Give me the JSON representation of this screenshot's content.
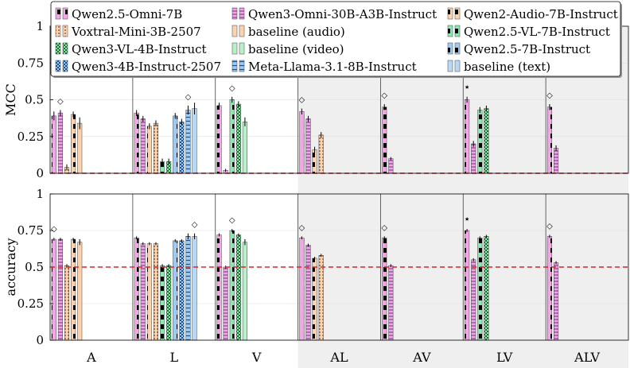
{
  "chart_data": {
    "type": "bar",
    "categories": [
      "A",
      "L",
      "V",
      "AL",
      "AV",
      "LV",
      "ALV"
    ],
    "shaded_categories": [
      "AL",
      "AV",
      "LV",
      "ALV"
    ],
    "legend": [
      {
        "label": "Qwen2.5-Omni-7B",
        "fill": "#f2a6e6",
        "pattern": "hstripe-black"
      },
      {
        "label": "Qwen3-Omni-30B-A3B-Instruct",
        "fill": "#f2a6e6",
        "pattern": "hgrid-purple"
      },
      {
        "label": "Qwen2-Audio-7B-Instruct",
        "fill": "#fbd3b0",
        "pattern": "hstripe-black"
      },
      {
        "label": "Voxtral-Mini-3B-2507",
        "fill": "#fbd3b0",
        "pattern": "dots-brown"
      },
      {
        "label": "baseline (audio)",
        "fill": "#fbd3b0",
        "pattern": "none"
      },
      {
        "label": "Qwen2.5-VL-7B-Instruct",
        "fill": "#8fe6b0",
        "pattern": "hstripe-black"
      },
      {
        "label": "Qwen3-VL-4B-Instruct",
        "fill": "#8fe6b0",
        "pattern": "checker-green"
      },
      {
        "label": "baseline (video)",
        "fill": "#b9efc9",
        "pattern": "none"
      },
      {
        "label": "Qwen2.5-7B-Instruct",
        "fill": "#9fcaf2",
        "pattern": "hstripe-black"
      },
      {
        "label": "Qwen3-4B-Instruct-2507",
        "fill": "#9fcaf2",
        "pattern": "checker-blue"
      },
      {
        "label": "Meta-Llama-3.1-8B-Instruct",
        "fill": "#9fcaf2",
        "pattern": "hlines-blue"
      },
      {
        "label": "baseline (text)",
        "fill": "#b8d8f5",
        "pattern": "none"
      }
    ],
    "panels": [
      {
        "ylabel": "MCC",
        "ylim": [
          0,
          1
        ],
        "yticks": [
          "0",
          "0.25",
          "0.5",
          "0.75",
          "1"
        ],
        "baseline": 0,
        "groups": [
          {
            "category": "A",
            "bars": [
              {
                "model": "Qwen2.5-Omni-7B",
                "value": 0.39,
                "err": 0.03
              },
              {
                "model": "Qwen3-Omni-30B-A3B-Instruct",
                "value": 0.41,
                "err": 0.02
              },
              {
                "model": "Voxtral-Mini-3B-2507",
                "value": 0.04,
                "err": 0.02
              },
              {
                "model": "Qwen2-Audio-7B-Instruct",
                "value": 0.4,
                "err": 0.02
              },
              {
                "model": "baseline (audio)",
                "value": 0.34,
                "err": 0.04
              }
            ],
            "marker": {
              "symbol": "◇",
              "over": 1
            }
          },
          {
            "category": "L",
            "bars": [
              {
                "model": "Qwen2.5-Omni-7B",
                "value": 0.41,
                "err": 0.02
              },
              {
                "model": "Qwen3-Omni-30B-A3B-Instruct",
                "value": 0.37,
                "err": 0.02
              },
              {
                "model": "Qwen2-Audio-7B-Instruct",
                "value": 0.32,
                "err": 0.02
              },
              {
                "model": "Voxtral-Mini-3B-2507",
                "value": 0.34,
                "err": 0.02
              },
              {
                "model": "Qwen2.5-VL-7B-Instruct",
                "value": 0.08,
                "err": 0.02
              },
              {
                "model": "Qwen3-VL-4B-Instruct",
                "value": 0.08,
                "err": 0.02
              },
              {
                "model": "Qwen2.5-7B-Instruct",
                "value": 0.39,
                "err": 0.02
              },
              {
                "model": "Qwen3-4B-Instruct-2507",
                "value": 0.35,
                "err": 0.02
              },
              {
                "model": "Meta-Llama-3.1-8B-Instruct",
                "value": 0.43,
                "err": 0.03
              },
              {
                "model": "baseline (text)",
                "value": 0.44,
                "err": 0.04
              }
            ],
            "marker": {
              "symbol": "◇",
              "over": 8
            }
          },
          {
            "category": "V",
            "bars": [
              {
                "model": "Qwen2.5-Omni-7B",
                "value": 0.46,
                "err": 0.02
              },
              {
                "model": "Qwen3-Omni-30B-A3B-Instruct",
                "value": 0.02,
                "err": 0.01
              },
              {
                "model": "Qwen2.5-VL-7B-Instruct",
                "value": 0.5,
                "err": 0.02
              },
              {
                "model": "Qwen3-VL-4B-Instruct",
                "value": 0.47,
                "err": 0.02
              },
              {
                "model": "baseline (video)",
                "value": 0.35,
                "err": 0.03
              }
            ],
            "marker": {
              "symbol": "◇",
              "over": 2
            }
          },
          {
            "category": "AL",
            "bars": [
              {
                "model": "Qwen2.5-Omni-7B",
                "value": 0.42,
                "err": 0.02
              },
              {
                "model": "Qwen3-Omni-30B-A3B-Instruct",
                "value": 0.37,
                "err": 0.02
              },
              {
                "model": "Qwen2-Audio-7B-Instruct",
                "value": 0.16,
                "err": 0.02
              },
              {
                "model": "Voxtral-Mini-3B-2507",
                "value": 0.26,
                "err": 0.02
              }
            ],
            "marker": {
              "symbol": "◇",
              "over": 0
            }
          },
          {
            "category": "AV",
            "bars": [
              {
                "model": "Qwen2.5-Omni-7B",
                "value": 0.45,
                "err": 0.02
              },
              {
                "model": "Qwen3-Omni-30B-A3B-Instruct",
                "value": 0.1,
                "err": 0.01
              }
            ],
            "marker": {
              "symbol": "◇",
              "over": 0
            }
          },
          {
            "category": "LV",
            "bars": [
              {
                "model": "Qwen2.5-Omni-7B",
                "value": 0.5,
                "err": 0.02
              },
              {
                "model": "Qwen3-Omni-30B-A3B-Instruct",
                "value": 0.2,
                "err": 0.02
              },
              {
                "model": "Qwen2.5-VL-7B-Instruct",
                "value": 0.43,
                "err": 0.02
              },
              {
                "model": "Qwen3-VL-4B-Instruct",
                "value": 0.44,
                "err": 0.02
              }
            ],
            "marker": {
              "symbol": "⋆",
              "over": 0
            }
          },
          {
            "category": "ALV",
            "bars": [
              {
                "model": "Qwen2.5-Omni-7B",
                "value": 0.45,
                "err": 0.02
              },
              {
                "model": "Qwen3-Omni-30B-A3B-Instruct",
                "value": 0.17,
                "err": 0.02
              }
            ],
            "marker": {
              "symbol": "◇",
              "over": 0
            }
          }
        ]
      },
      {
        "ylabel": "accuracy",
        "ylim": [
          0,
          1
        ],
        "yticks": [
          "0",
          "0.25",
          "0.5",
          "0.75",
          "1"
        ],
        "baseline": 0.5,
        "groups": [
          {
            "category": "A",
            "bars": [
              {
                "model": "Qwen2.5-Omni-7B",
                "value": 0.69,
                "err": 0.01
              },
              {
                "model": "Qwen3-Omni-30B-A3B-Instruct",
                "value": 0.69,
                "err": 0.01
              },
              {
                "model": "Voxtral-Mini-3B-2507",
                "value": 0.51,
                "err": 0.01
              },
              {
                "model": "Qwen2-Audio-7B-Instruct",
                "value": 0.69,
                "err": 0.01
              },
              {
                "model": "baseline (audio)",
                "value": 0.67,
                "err": 0.02
              }
            ],
            "marker": {
              "symbol": "◇",
              "over": 0
            }
          },
          {
            "category": "L",
            "bars": [
              {
                "model": "Qwen2.5-Omni-7B",
                "value": 0.7,
                "err": 0.01
              },
              {
                "model": "Qwen3-Omni-30B-A3B-Instruct",
                "value": 0.66,
                "err": 0.01
              },
              {
                "model": "Qwen2-Audio-7B-Instruct",
                "value": 0.66,
                "err": 0.01
              },
              {
                "model": "Voxtral-Mini-3B-2507",
                "value": 0.66,
                "err": 0.01
              },
              {
                "model": "Qwen2.5-VL-7B-Instruct",
                "value": 0.51,
                "err": 0.01
              },
              {
                "model": "Qwen3-VL-4B-Instruct",
                "value": 0.51,
                "err": 0.01
              },
              {
                "model": "Qwen2.5-7B-Instruct",
                "value": 0.68,
                "err": 0.01
              },
              {
                "model": "Qwen3-4B-Instruct-2507",
                "value": 0.68,
                "err": 0.01
              },
              {
                "model": "Meta-Llama-3.1-8B-Instruct",
                "value": 0.71,
                "err": 0.02
              },
              {
                "model": "baseline (text)",
                "value": 0.71,
                "err": 0.02
              }
            ],
            "marker": {
              "symbol": "◇",
              "over": 9
            }
          },
          {
            "category": "V",
            "bars": [
              {
                "model": "Qwen2.5-Omni-7B",
                "value": 0.72,
                "err": 0.01
              },
              {
                "model": "Qwen3-Omni-30B-A3B-Instruct",
                "value": 0.5,
                "err": 0.01
              },
              {
                "model": "Qwen2.5-VL-7B-Instruct",
                "value": 0.75,
                "err": 0.01
              },
              {
                "model": "Qwen3-VL-4B-Instruct",
                "value": 0.72,
                "err": 0.01
              },
              {
                "model": "baseline (video)",
                "value": 0.67,
                "err": 0.02
              }
            ],
            "marker": {
              "symbol": "◇",
              "over": 2
            }
          },
          {
            "category": "AL",
            "bars": [
              {
                "model": "Qwen2.5-Omni-7B",
                "value": 0.7,
                "err": 0.01
              },
              {
                "model": "Qwen3-Omni-30B-A3B-Instruct",
                "value": 0.65,
                "err": 0.01
              },
              {
                "model": "Qwen2-Audio-7B-Instruct",
                "value": 0.56,
                "err": 0.01
              },
              {
                "model": "Voxtral-Mini-3B-2507",
                "value": 0.58,
                "err": 0.01
              }
            ],
            "marker": {
              "symbol": "◇",
              "over": 0
            }
          },
          {
            "category": "AV",
            "bars": [
              {
                "model": "Qwen2.5-Omni-7B",
                "value": 0.7,
                "err": 0.01
              },
              {
                "model": "Qwen3-Omni-30B-A3B-Instruct",
                "value": 0.51,
                "err": 0.01
              }
            ],
            "marker": {
              "symbol": "◇",
              "over": 0
            }
          },
          {
            "category": "LV",
            "bars": [
              {
                "model": "Qwen2.5-Omni-7B",
                "value": 0.75,
                "err": 0.01
              },
              {
                "model": "Qwen3-Omni-30B-A3B-Instruct",
                "value": 0.55,
                "err": 0.01
              },
              {
                "model": "Qwen2.5-VL-7B-Instruct",
                "value": 0.7,
                "err": 0.01
              },
              {
                "model": "Qwen3-VL-4B-Instruct",
                "value": 0.71,
                "err": 0.01
              }
            ],
            "marker": {
              "symbol": "⋆",
              "over": 0
            }
          },
          {
            "category": "ALV",
            "bars": [
              {
                "model": "Qwen2.5-Omni-7B",
                "value": 0.71,
                "err": 0.01
              },
              {
                "model": "Qwen3-Omni-30B-A3B-Instruct",
                "value": 0.53,
                "err": 0.01
              }
            ],
            "marker": {
              "symbol": "◇",
              "over": 0
            }
          }
        ]
      }
    ],
    "grid": true,
    "legend_position": "top"
  }
}
